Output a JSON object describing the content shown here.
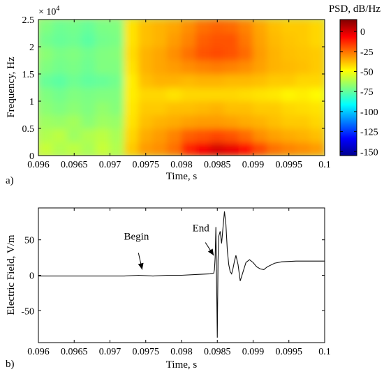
{
  "chart_data": [
    {
      "panel_label": "a)",
      "type": "heatmap",
      "title": "",
      "xlabel": "Time, s",
      "ylabel": "Frequency, Hz",
      "y_exponent_label": "× 10",
      "y_exponent_power": "4",
      "xlim": [
        0.096,
        0.1
      ],
      "ylim": [
        0,
        25000
      ],
      "x_ticks": [
        0.096,
        0.0965,
        0.097,
        0.0975,
        0.098,
        0.0985,
        0.099,
        0.0995,
        0.1
      ],
      "x_tick_labels": [
        "0.096",
        "0.0965",
        "0.097",
        "0.0975",
        "0.098",
        "0.0985",
        "0.099",
        "0.0995",
        "0.1"
      ],
      "y_ticks": [
        0,
        5000,
        10000,
        15000,
        20000,
        25000
      ],
      "y_tick_labels": [
        "0",
        "0.5",
        "1",
        "1.5",
        "2",
        "2.5"
      ],
      "colorbar": {
        "label": "PSD, dB/Hz",
        "range": [
          -155,
          15
        ],
        "ticks": [
          0,
          -25,
          -50,
          -75,
          -100,
          -125,
          -150
        ],
        "tick_labels": [
          "0",
          "-25",
          "-50",
          "-75",
          "-100",
          "-125",
          "-150"
        ]
      },
      "time_bins": [
        0.0961,
        0.0963,
        0.0965,
        0.0967,
        0.0969,
        0.0971,
        0.0973,
        0.0975,
        0.0977,
        0.0979,
        0.0981,
        0.0983,
        0.0985,
        0.0987,
        0.0989,
        0.0991,
        0.0993,
        0.0995,
        0.0997,
        0.0999
      ],
      "freq_bins": [
        1250,
        3750,
        6250,
        8750,
        11250,
        13750,
        16250,
        18750,
        21250,
        23750
      ],
      "psd_db": [
        [
          -58,
          -62,
          -60,
          -63,
          -58,
          -62,
          -40,
          -32,
          -30,
          -25,
          -12,
          -5,
          0,
          -3,
          -8,
          -18,
          -25,
          -28,
          -30,
          -32
        ],
        [
          -62,
          -60,
          -65,
          -62,
          -60,
          -63,
          -42,
          -35,
          -32,
          -28,
          -22,
          -20,
          -18,
          -20,
          -24,
          -30,
          -33,
          -35,
          -36,
          -38
        ],
        [
          -65,
          -66,
          -64,
          -68,
          -65,
          -66,
          -44,
          -38,
          -36,
          -35,
          -33,
          -32,
          -32,
          -33,
          -35,
          -36,
          -38,
          -40,
          -40,
          -42
        ],
        [
          -68,
          -70,
          -68,
          -70,
          -67,
          -69,
          -45,
          -40,
          -40,
          -38,
          -38,
          -37,
          -36,
          -38,
          -38,
          -40,
          -40,
          -42,
          -43,
          -44
        ],
        [
          -70,
          -72,
          -70,
          -71,
          -70,
          -70,
          -46,
          -42,
          -42,
          -44,
          -42,
          -42,
          -42,
          -42,
          -43,
          -44,
          -45,
          -47,
          -46,
          -48
        ],
        [
          -74,
          -76,
          -73,
          -75,
          -74,
          -72,
          -46,
          -38,
          -36,
          -36,
          -37,
          -36,
          -36,
          -37,
          -37,
          -38,
          -40,
          -40,
          -42,
          -42
        ],
        [
          -70,
          -72,
          -71,
          -73,
          -70,
          -70,
          -44,
          -36,
          -34,
          -32,
          -30,
          -28,
          -27,
          -28,
          -30,
          -33,
          -36,
          -37,
          -38,
          -40
        ],
        [
          -68,
          -71,
          -70,
          -72,
          -70,
          -69,
          -43,
          -36,
          -34,
          -30,
          -25,
          -20,
          -19,
          -20,
          -24,
          -32,
          -36,
          -38,
          -39,
          -40
        ],
        [
          -72,
          -74,
          -73,
          -76,
          -72,
          -71,
          -44,
          -38,
          -36,
          -32,
          -28,
          -22,
          -20,
          -20,
          -26,
          -33,
          -37,
          -39,
          -40,
          -42
        ],
        [
          -70,
          -73,
          -72,
          -74,
          -71,
          -70,
          -44,
          -38,
          -36,
          -34,
          -30,
          -25,
          -23,
          -24,
          -28,
          -34,
          -38,
          -40,
          -40,
          -42
        ]
      ]
    },
    {
      "panel_label": "b)",
      "type": "line",
      "title": "",
      "xlabel": "Time, s",
      "ylabel": "Electric Field, V/m",
      "xlim": [
        0.096,
        0.1
      ],
      "ylim": [
        -95,
        95
      ],
      "x_ticks": [
        0.096,
        0.0965,
        0.097,
        0.0975,
        0.098,
        0.0985,
        0.099,
        0.0995,
        0.1
      ],
      "x_tick_labels": [
        "0.096",
        "0.0965",
        "0.097",
        "0.0975",
        "0.098",
        "0.0985",
        "0.099",
        "0.0995",
        "0.1"
      ],
      "y_ticks": [
        -50,
        0,
        50
      ],
      "y_tick_labels": [
        "-50",
        "0",
        "50"
      ],
      "annotations": [
        {
          "text": "Begin",
          "text_x": 0.09737,
          "text_y": 50,
          "arrow_to": [
            0.09745,
            8
          ]
        },
        {
          "text": "End",
          "text_x": 0.09827,
          "text_y": 62,
          "arrow_to": [
            0.09845,
            28
          ]
        }
      ],
      "series": [
        {
          "x": [
            0.096,
            0.0962,
            0.0964,
            0.0966,
            0.0968,
            0.097,
            0.0972,
            0.0974,
            0.0976,
            0.0978,
            0.098,
            0.0982,
            0.0984,
            0.09845,
            0.09846,
            0.09847,
            0.09848,
            0.0985,
            0.09851,
            0.09852,
            0.09854,
            0.09856,
            0.09858,
            0.0986,
            0.09862,
            0.09864,
            0.09866,
            0.09868,
            0.0987,
            0.09872,
            0.09874,
            0.09876,
            0.09879,
            0.09882,
            0.09886,
            0.0989,
            0.09895,
            0.099,
            0.09905,
            0.0991,
            0.09915,
            0.0992,
            0.0993,
            0.0994,
            0.0996,
            0.0998,
            0.1
          ],
          "y": [
            -1,
            -1,
            -1,
            -1,
            -1,
            -1,
            -1,
            0,
            -1,
            0,
            0,
            1,
            2,
            3,
            8,
            25,
            68,
            -88,
            20,
            55,
            62,
            45,
            68,
            90,
            72,
            35,
            15,
            5,
            2,
            10,
            20,
            28,
            15,
            -8,
            5,
            18,
            22,
            18,
            12,
            9,
            8,
            12,
            17,
            19,
            20,
            20,
            20
          ]
        }
      ]
    }
  ]
}
